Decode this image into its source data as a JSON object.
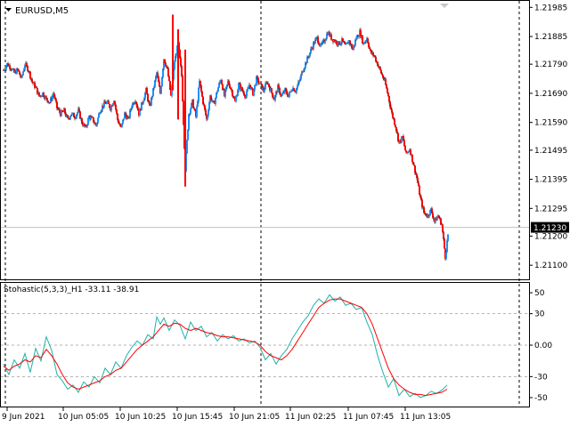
{
  "window": {
    "symbol_label": "EURUSD,M5",
    "indicator_label": "Stohastic(5,3,3)_H1 -33.11 -38.91"
  },
  "colors": {
    "bull": "#1e90ff",
    "bear": "#ff0000",
    "wick": "#000000",
    "k_line": "#20b2aa",
    "d_line": "#ff0000",
    "grid": "#9a9a9a",
    "price_tag_bg": "#000000",
    "price_tag_fg": "#ffffff"
  },
  "icons": {
    "menu": "triangle-down-icon",
    "scroll": "scroll-marker-icon"
  },
  "chart_data": [
    {
      "type": "candlestick",
      "title": "EURUSD,M5",
      "ylim": [
        1.2107,
        1.21995
      ],
      "price_ticks": [
        "1.21985",
        "1.21885",
        "1.21790",
        "1.21690",
        "1.21590",
        "1.21495",
        "1.21395",
        "1.21295",
        "1.21200",
        "1.21100"
      ],
      "current_price_label": "1.21230",
      "current_price": 1.2123,
      "x_ticks": [
        "9 Jun 2021",
        "10 Jun 05:05",
        "10 Jun 10:25",
        "10 Jun 15:45",
        "10 Jun 21:05",
        "11 Jun 02:25",
        "11 Jun 07:45",
        "11 Jun 13:05"
      ],
      "session_separators": [
        "10 Jun 00:00",
        "11 Jun 00:00"
      ],
      "close_path": [
        [
          0,
          1.2177
        ],
        [
          4,
          1.2179
        ],
        [
          8,
          1.2178
        ],
        [
          12,
          1.2176
        ],
        [
          16,
          1.2177
        ],
        [
          20,
          1.2174
        ],
        [
          24,
          1.2179
        ],
        [
          28,
          1.2177
        ],
        [
          32,
          1.2173
        ],
        [
          36,
          1.2171
        ],
        [
          40,
          1.2168
        ],
        [
          44,
          1.2169
        ],
        [
          48,
          1.2167
        ],
        [
          52,
          1.2166
        ],
        [
          56,
          1.2169
        ],
        [
          60,
          1.2164
        ],
        [
          64,
          1.2162
        ],
        [
          68,
          1.2163
        ],
        [
          72,
          1.216
        ],
        [
          76,
          1.2162
        ],
        [
          80,
          1.2161
        ],
        [
          84,
          1.2163
        ],
        [
          88,
          1.2159
        ],
        [
          92,
          1.2157
        ],
        [
          96,
          1.2161
        ],
        [
          100,
          1.216
        ],
        [
          104,
          1.2158
        ],
        [
          108,
          1.2163
        ],
        [
          112,
          1.2165
        ],
        [
          116,
          1.2166
        ],
        [
          120,
          1.2164
        ],
        [
          124,
          1.2167
        ],
        [
          128,
          1.216
        ],
        [
          132,
          1.2157
        ],
        [
          136,
          1.2162
        ],
        [
          140,
          1.216
        ],
        [
          144,
          1.2165
        ],
        [
          148,
          1.2167
        ],
        [
          152,
          1.2162
        ],
        [
          156,
          1.2166
        ],
        [
          160,
          1.217
        ],
        [
          164,
          1.2164
        ],
        [
          168,
          1.217
        ],
        [
          172,
          1.2176
        ],
        [
          176,
          1.2169
        ],
        [
          180,
          1.2181
        ],
        [
          184,
          1.2177
        ],
        [
          188,
          1.2168
        ],
        [
          192,
          1.218
        ],
        [
          196,
          1.2186
        ],
        [
          200,
          1.2175
        ],
        [
          204,
          1.2143
        ],
        [
          208,
          1.2162
        ],
        [
          212,
          1.2166
        ],
        [
          216,
          1.2161
        ],
        [
          220,
          1.2173
        ],
        [
          224,
          1.2166
        ],
        [
          228,
          1.216
        ],
        [
          232,
          1.2168
        ],
        [
          236,
          1.2165
        ],
        [
          240,
          1.217
        ],
        [
          244,
          1.2174
        ],
        [
          248,
          1.2168
        ],
        [
          252,
          1.2173
        ],
        [
          256,
          1.217
        ],
        [
          260,
          1.2166
        ],
        [
          264,
          1.2172
        ],
        [
          268,
          1.217
        ],
        [
          272,
          1.2168
        ],
        [
          276,
          1.2172
        ],
        [
          280,
          1.2169
        ],
        [
          284,
          1.2174
        ],
        [
          288,
          1.2172
        ],
        [
          292,
          1.217
        ],
        [
          296,
          1.2173
        ],
        [
          300,
          1.217
        ],
        [
          304,
          1.2167
        ],
        [
          308,
          1.2171
        ],
        [
          312,
          1.2168
        ],
        [
          316,
          1.217
        ],
        [
          320,
          1.2168
        ],
        [
          324,
          1.2171
        ],
        [
          328,
          1.217
        ],
        [
          332,
          1.2173
        ],
        [
          336,
          1.2177
        ],
        [
          340,
          1.218
        ],
        [
          344,
          1.2183
        ],
        [
          348,
          1.2186
        ],
        [
          352,
          1.2188
        ],
        [
          356,
          1.2185
        ],
        [
          360,
          1.2187
        ],
        [
          364,
          1.219
        ],
        [
          368,
          1.2188
        ],
        [
          372,
          1.2187
        ],
        [
          376,
          1.2186
        ],
        [
          380,
          1.2187
        ],
        [
          384,
          1.2185
        ],
        [
          388,
          1.2187
        ],
        [
          392,
          1.2184
        ],
        [
          396,
          1.2188
        ],
        [
          400,
          1.219
        ],
        [
          404,
          1.2186
        ],
        [
          408,
          1.2188
        ],
        [
          412,
          1.2183
        ],
        [
          416,
          1.2182
        ],
        [
          420,
          1.2179
        ],
        [
          424,
          1.2176
        ],
        [
          428,
          1.2173
        ],
        [
          432,
          1.2168
        ],
        [
          436,
          1.2162
        ],
        [
          440,
          1.2158
        ],
        [
          444,
          1.2152
        ],
        [
          448,
          1.2154
        ],
        [
          452,
          1.2148
        ],
        [
          456,
          1.215
        ],
        [
          460,
          1.2145
        ],
        [
          464,
          1.214
        ],
        [
          468,
          1.2133
        ],
        [
          472,
          1.2128
        ],
        [
          476,
          1.2127
        ],
        [
          480,
          1.2129
        ],
        [
          484,
          1.2125
        ],
        [
          488,
          1.2127
        ],
        [
          492,
          1.2124
        ],
        [
          496,
          1.2113
        ],
        [
          500,
          1.2123
        ]
      ]
    },
    {
      "type": "line",
      "title": "Stohastic(5,3,3)_H1",
      "ylim": [
        -56,
        56
      ],
      "y_ticks": [
        "50",
        "30",
        "0.00",
        "-30",
        "-50"
      ],
      "levels": [
        30,
        0,
        -30
      ],
      "series": [
        {
          "name": "Main",
          "values": [
            [
              0,
              -18
            ],
            [
              6,
              -28
            ],
            [
              12,
              -14
            ],
            [
              18,
              -22
            ],
            [
              24,
              -8
            ],
            [
              30,
              -26
            ],
            [
              36,
              -3
            ],
            [
              42,
              -15
            ],
            [
              48,
              8
            ],
            [
              54,
              -5
            ],
            [
              60,
              -28
            ],
            [
              66,
              -34
            ],
            [
              72,
              -42
            ],
            [
              78,
              -38
            ],
            [
              84,
              -45
            ],
            [
              90,
              -35
            ],
            [
              96,
              -40
            ],
            [
              102,
              -30
            ],
            [
              108,
              -36
            ],
            [
              114,
              -22
            ],
            [
              120,
              -28
            ],
            [
              126,
              -16
            ],
            [
              132,
              -22
            ],
            [
              138,
              -10
            ],
            [
              144,
              -2
            ],
            [
              150,
              4
            ],
            [
              156,
              0
            ],
            [
              162,
              10
            ],
            [
              168,
              6
            ],
            [
              172,
              27
            ],
            [
              176,
              20
            ],
            [
              180,
              26
            ],
            [
              186,
              14
            ],
            [
              192,
              24
            ],
            [
              198,
              19
            ],
            [
              204,
              6
            ],
            [
              210,
              22
            ],
            [
              216,
              14
            ],
            [
              222,
              18
            ],
            [
              228,
              8
            ],
            [
              234,
              12
            ],
            [
              240,
              4
            ],
            [
              246,
              10
            ],
            [
              252,
              6
            ],
            [
              258,
              9
            ],
            [
              264,
              4
            ],
            [
              270,
              6
            ],
            [
              276,
              2
            ],
            [
              282,
              4
            ],
            [
              288,
              -2
            ],
            [
              294,
              -14
            ],
            [
              300,
              -8
            ],
            [
              306,
              -18
            ],
            [
              312,
              -10
            ],
            [
              318,
              -4
            ],
            [
              324,
              6
            ],
            [
              330,
              14
            ],
            [
              336,
              22
            ],
            [
              342,
              28
            ],
            [
              348,
              38
            ],
            [
              354,
              44
            ],
            [
              360,
              40
            ],
            [
              366,
              48
            ],
            [
              372,
              42
            ],
            [
              378,
              46
            ],
            [
              384,
              38
            ],
            [
              390,
              40
            ],
            [
              396,
              34
            ],
            [
              402,
              36
            ],
            [
              408,
              22
            ],
            [
              414,
              10
            ],
            [
              420,
              -10
            ],
            [
              426,
              -26
            ],
            [
              432,
              -40
            ],
            [
              438,
              -32
            ],
            [
              444,
              -48
            ],
            [
              450,
              -42
            ],
            [
              456,
              -49
            ],
            [
              462,
              -46
            ],
            [
              468,
              -50
            ],
            [
              474,
              -48
            ],
            [
              480,
              -44
            ],
            [
              486,
              -46
            ],
            [
              492,
              -43
            ],
            [
              498,
              -38
            ]
          ]
        },
        {
          "name": "Signal",
          "values": [
            [
              0,
              -20
            ],
            [
              6,
              -24
            ],
            [
              12,
              -20
            ],
            [
              18,
              -18
            ],
            [
              24,
              -14
            ],
            [
              30,
              -16
            ],
            [
              36,
              -10
            ],
            [
              42,
              -12
            ],
            [
              48,
              -4
            ],
            [
              54,
              -10
            ],
            [
              60,
              -18
            ],
            [
              66,
              -28
            ],
            [
              72,
              -36
            ],
            [
              78,
              -40
            ],
            [
              84,
              -42
            ],
            [
              90,
              -40
            ],
            [
              96,
              -38
            ],
            [
              102,
              -36
            ],
            [
              108,
              -34
            ],
            [
              114,
              -30
            ],
            [
              120,
              -28
            ],
            [
              126,
              -24
            ],
            [
              132,
              -22
            ],
            [
              138,
              -16
            ],
            [
              144,
              -10
            ],
            [
              150,
              -4
            ],
            [
              156,
              0
            ],
            [
              162,
              4
            ],
            [
              168,
              8
            ],
            [
              172,
              12
            ],
            [
              176,
              16
            ],
            [
              180,
              20
            ],
            [
              186,
              18
            ],
            [
              192,
              21
            ],
            [
              198,
              20
            ],
            [
              204,
              16
            ],
            [
              210,
              14
            ],
            [
              216,
              16
            ],
            [
              222,
              14
            ],
            [
              228,
              12
            ],
            [
              234,
              11
            ],
            [
              240,
              9
            ],
            [
              246,
              8
            ],
            [
              252,
              8
            ],
            [
              258,
              7
            ],
            [
              264,
              6
            ],
            [
              270,
              5
            ],
            [
              276,
              4
            ],
            [
              282,
              3
            ],
            [
              288,
              0
            ],
            [
              294,
              -6
            ],
            [
              300,
              -10
            ],
            [
              306,
              -12
            ],
            [
              312,
              -14
            ],
            [
              318,
              -10
            ],
            [
              324,
              -4
            ],
            [
              330,
              4
            ],
            [
              336,
              12
            ],
            [
              342,
              20
            ],
            [
              348,
              28
            ],
            [
              354,
              36
            ],
            [
              360,
              40
            ],
            [
              366,
              43
            ],
            [
              372,
              44
            ],
            [
              378,
              44
            ],
            [
              384,
              42
            ],
            [
              390,
              40
            ],
            [
              396,
              38
            ],
            [
              402,
              36
            ],
            [
              408,
              30
            ],
            [
              414,
              20
            ],
            [
              420,
              6
            ],
            [
              426,
              -8
            ],
            [
              432,
              -22
            ],
            [
              438,
              -32
            ],
            [
              444,
              -38
            ],
            [
              450,
              -42
            ],
            [
              456,
              -45
            ],
            [
              462,
              -47
            ],
            [
              468,
              -47
            ],
            [
              474,
              -48
            ],
            [
              480,
              -47
            ],
            [
              486,
              -46
            ],
            [
              492,
              -45
            ],
            [
              498,
              -42
            ]
          ]
        }
      ]
    }
  ]
}
